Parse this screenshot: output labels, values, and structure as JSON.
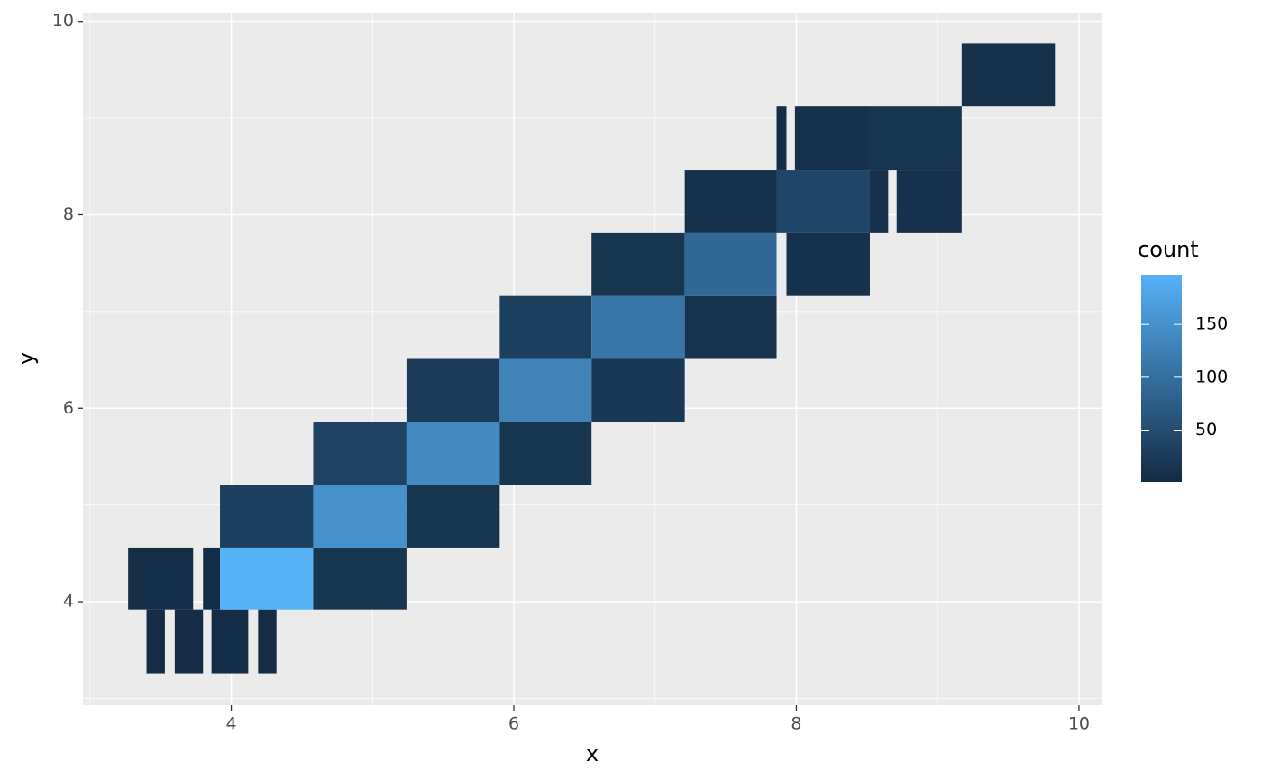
{
  "chart_data": {
    "type": "heatmap",
    "x_label": "x",
    "y_label": "y",
    "legend_title": "count",
    "xlim": [
      2.95,
      10.16
    ],
    "ylim": [
      2.93,
      10.09
    ],
    "xticks": [
      4,
      6,
      8,
      10
    ],
    "yticks": [
      4,
      6,
      8,
      10
    ],
    "x_minor": [
      3,
      5,
      7,
      9
    ],
    "y_minor": [
      3,
      5,
      7,
      9
    ],
    "color_low": "#132B43",
    "color_high": "#56B1F7",
    "color_lim": [
      1,
      197
    ],
    "colorbar_ticks": [
      50,
      100,
      150
    ],
    "tiles": [
      {
        "x": [
          3.4,
          3.53
        ],
        "y": [
          3.26,
          3.92
        ],
        "count": 3
      },
      {
        "x": [
          3.6,
          3.8
        ],
        "y": [
          3.26,
          3.92
        ],
        "count": 3
      },
      {
        "x": [
          3.86,
          4.12
        ],
        "y": [
          3.26,
          3.92
        ],
        "count": 4
      },
      {
        "x": [
          4.19,
          4.32
        ],
        "y": [
          3.26,
          3.92
        ],
        "count": 3
      },
      {
        "x": [
          3.27,
          3.73
        ],
        "y": [
          3.92,
          4.56
        ],
        "count": 5
      },
      {
        "x": [
          3.8,
          3.92
        ],
        "y": [
          3.92,
          4.56
        ],
        "count": 4
      },
      {
        "x": [
          3.92,
          4.58
        ],
        "y": [
          3.92,
          4.56
        ],
        "count": 197
      },
      {
        "x": [
          4.58,
          5.24
        ],
        "y": [
          3.92,
          4.56
        ],
        "count": 15
      },
      {
        "x": [
          3.92,
          4.58
        ],
        "y": [
          4.56,
          5.21
        ],
        "count": 30
      },
      {
        "x": [
          4.58,
          5.24
        ],
        "y": [
          4.56,
          5.21
        ],
        "count": 150
      },
      {
        "x": [
          5.24,
          5.9
        ],
        "y": [
          4.56,
          5.21
        ],
        "count": 15
      },
      {
        "x": [
          4.58,
          5.24
        ],
        "y": [
          5.21,
          5.86
        ],
        "count": 35
      },
      {
        "x": [
          5.24,
          5.9
        ],
        "y": [
          5.21,
          5.86
        ],
        "count": 140
      },
      {
        "x": [
          5.9,
          6.55
        ],
        "y": [
          5.21,
          5.86
        ],
        "count": 15
      },
      {
        "x": [
          5.24,
          5.9
        ],
        "y": [
          5.86,
          6.51
        ],
        "count": 25
      },
      {
        "x": [
          5.9,
          6.55
        ],
        "y": [
          5.86,
          6.51
        ],
        "count": 130
      },
      {
        "x": [
          6.55,
          7.21
        ],
        "y": [
          5.86,
          6.51
        ],
        "count": 20
      },
      {
        "x": [
          5.9,
          6.55
        ],
        "y": [
          6.51,
          7.16
        ],
        "count": 30
      },
      {
        "x": [
          6.55,
          7.21
        ],
        "y": [
          6.51,
          7.16
        ],
        "count": 110
      },
      {
        "x": [
          7.21,
          7.86
        ],
        "y": [
          6.51,
          7.16
        ],
        "count": 12
      },
      {
        "x": [
          6.55,
          7.21
        ],
        "y": [
          7.16,
          7.81
        ],
        "count": 15
      },
      {
        "x": [
          7.21,
          7.86
        ],
        "y": [
          7.16,
          7.81
        ],
        "count": 90
      },
      {
        "x": [
          7.93,
          8.52
        ],
        "y": [
          7.16,
          7.81
        ],
        "count": 10
      },
      {
        "x": [
          7.21,
          7.86
        ],
        "y": [
          7.81,
          8.46
        ],
        "count": 10
      },
      {
        "x": [
          7.86,
          8.52
        ],
        "y": [
          7.81,
          8.46
        ],
        "count": 40
      },
      {
        "x": [
          8.52,
          8.65
        ],
        "y": [
          7.81,
          8.46
        ],
        "count": 10
      },
      {
        "x": [
          8.71,
          9.17
        ],
        "y": [
          7.81,
          8.46
        ],
        "count": 10
      },
      {
        "x": [
          7.86,
          7.93
        ],
        "y": [
          8.46,
          9.12
        ],
        "count": 5
      },
      {
        "x": [
          7.99,
          8.52
        ],
        "y": [
          8.46,
          9.12
        ],
        "count": 10
      },
      {
        "x": [
          8.52,
          9.17
        ],
        "y": [
          8.46,
          9.12
        ],
        "count": 15
      },
      {
        "x": [
          9.17,
          9.83
        ],
        "y": [
          9.12,
          9.77
        ],
        "count": 10
      }
    ]
  }
}
